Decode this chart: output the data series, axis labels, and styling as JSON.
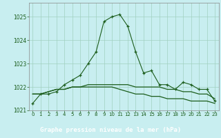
{
  "title": "Graphe pression niveau de la mer (hPa)",
  "background_color": "#c8eef0",
  "plot_bg_color": "#c8eef0",
  "label_bg_color": "#2d6a2d",
  "label_text_color": "#ffffff",
  "grid_color": "#a0d0c0",
  "line_color": "#1a5c1a",
  "x_values": [
    0,
    1,
    2,
    3,
    4,
    5,
    6,
    7,
    8,
    9,
    10,
    11,
    12,
    13,
    14,
    15,
    16,
    17,
    18,
    19,
    20,
    21,
    22,
    23
  ],
  "series1": [
    1021.3,
    1021.7,
    1021.7,
    1021.8,
    1022.1,
    1022.3,
    1022.5,
    1023.0,
    1023.5,
    1024.8,
    1025.0,
    1025.1,
    1024.6,
    1023.5,
    1022.6,
    1022.7,
    1022.1,
    1022.1,
    1021.9,
    1022.2,
    1022.1,
    1021.9,
    1021.9,
    1021.4
  ],
  "series2": [
    1021.7,
    1021.7,
    1021.8,
    1021.9,
    1021.9,
    1022.0,
    1022.0,
    1022.1,
    1022.1,
    1022.1,
    1022.1,
    1022.1,
    1022.1,
    1022.0,
    1022.0,
    1022.0,
    1022.0,
    1021.9,
    1021.9,
    1021.8,
    1021.8,
    1021.7,
    1021.7,
    1021.5
  ],
  "series3": [
    1021.7,
    1021.7,
    1021.8,
    1021.9,
    1021.9,
    1022.0,
    1022.0,
    1022.0,
    1022.0,
    1022.0,
    1022.0,
    1021.9,
    1021.8,
    1021.7,
    1021.7,
    1021.6,
    1021.6,
    1021.5,
    1021.5,
    1021.5,
    1021.4,
    1021.4,
    1021.4,
    1021.3
  ],
  "ylim": [
    1021.0,
    1025.6
  ],
  "yticks": [
    1021,
    1022,
    1023,
    1024,
    1025
  ],
  "xlim": [
    -0.5,
    23.5
  ],
  "xtick_fontsize": 5.0,
  "ytick_fontsize": 5.5,
  "title_fontsize": 6.5
}
